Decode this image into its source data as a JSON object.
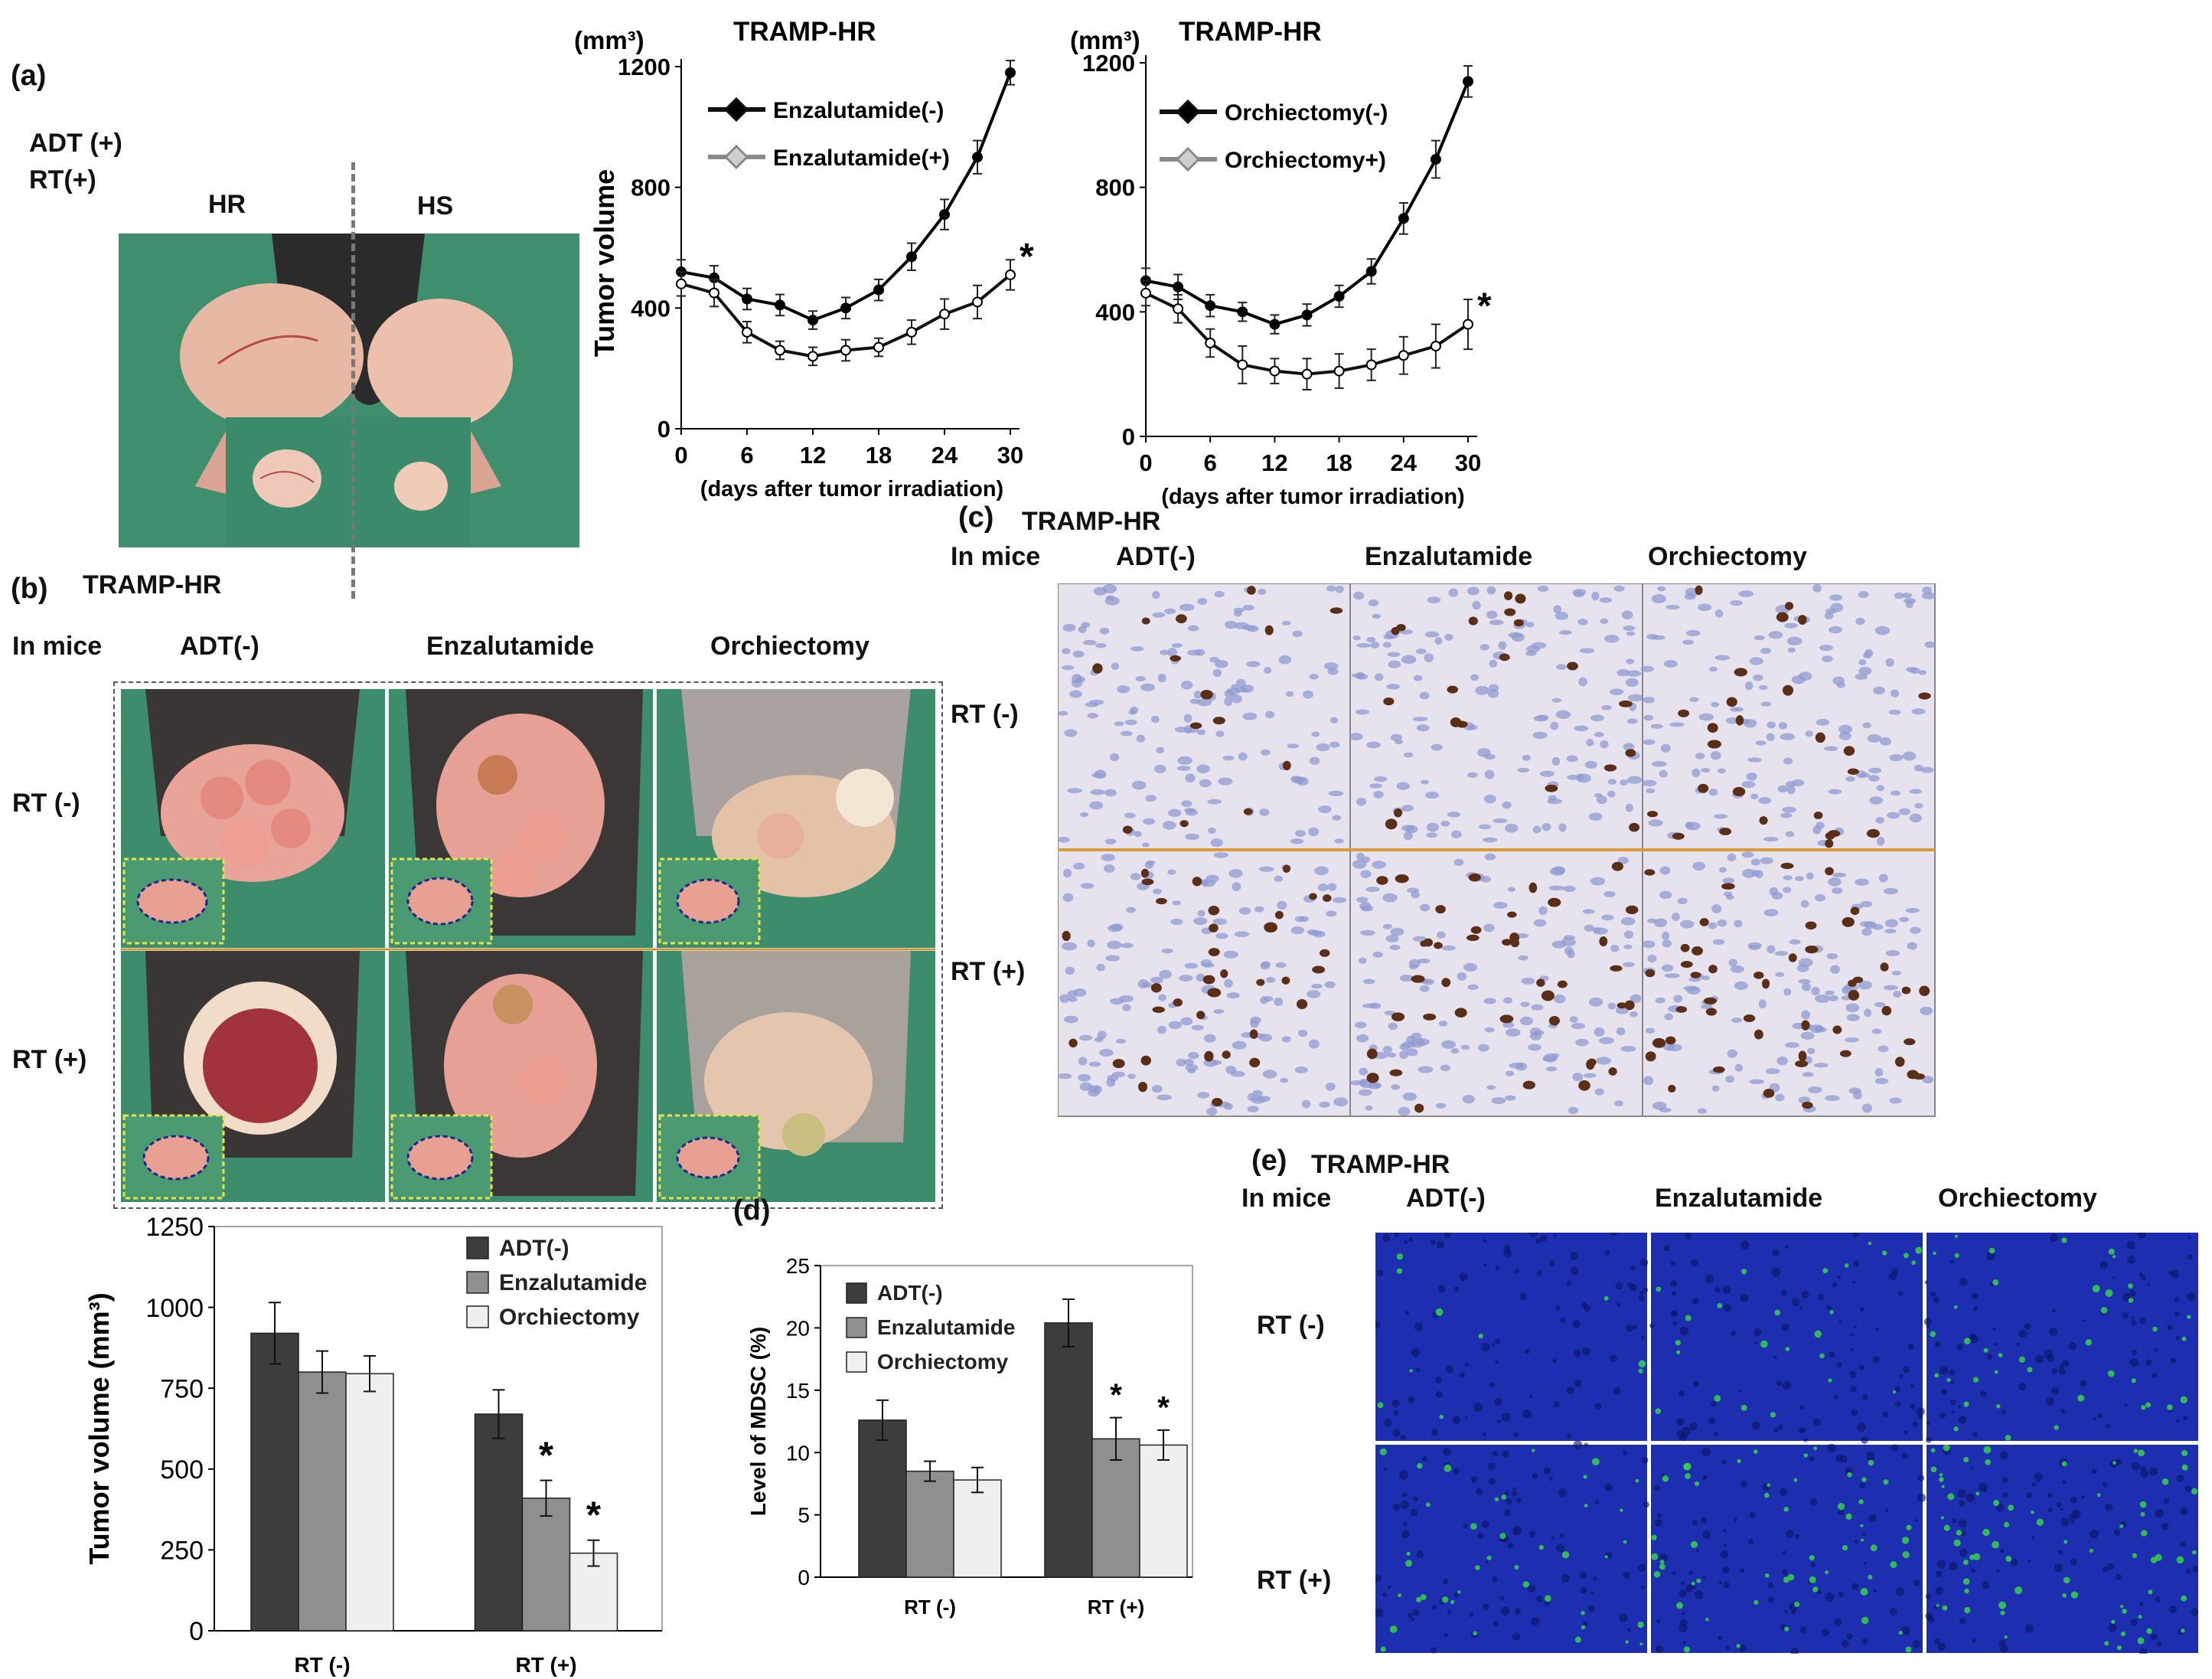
{
  "panel_a": {
    "letter": "(a)",
    "condition_line1": "ADT (+)",
    "condition_line2": "RT(+)",
    "label_hr": "HR",
    "label_hs": "HS"
  },
  "panel_b": {
    "letter": "(b)",
    "title": "TRAMP-HR",
    "in_mice": "In mice",
    "col_labels": [
      "ADT(-)",
      "Enzalutamide",
      "Orchiectomy"
    ],
    "row_labels": [
      "RT (-)",
      "RT (+)"
    ]
  },
  "panel_c": {
    "letter": "(c)",
    "title": "TRAMP-HR",
    "in_mice": "In mice",
    "col_labels": [
      "ADT(-)",
      "Enzalutamide",
      "Orchiectomy"
    ],
    "row_labels": [
      "RT (-)",
      "RT (+)"
    ]
  },
  "panel_d_letter": "(d)",
  "panel_e": {
    "letter": "(e)",
    "title": "TRAMP-HR",
    "in_mice": "In mice",
    "col_labels": [
      "ADT(-)",
      "Enzalutamide",
      "Orchiectomy"
    ],
    "row_labels": [
      "RT (-)",
      "RT (+)"
    ]
  },
  "colors": {
    "black_series": "#111111",
    "grey_series": "#8a8a8a",
    "bar_adt": "#3d3d3d",
    "bar_enz": "#8f8f8f",
    "bar_orch": "#efefef",
    "drape_green": "#3f8f6f",
    "if_blue": "#1d2fb0"
  },
  "chart_data": [
    {
      "id": "line1",
      "type": "line",
      "title": "TRAMP-HR",
      "unit": "(mm³)",
      "ylabel": "Tumor volume",
      "xlabel": "(days after tumor irradiation)",
      "xlim": [
        0,
        30
      ],
      "ylim": [
        0,
        1200
      ],
      "xticks": [
        "0",
        "6",
        "12",
        "18",
        "24",
        "30"
      ],
      "yticks": [
        "0",
        "400",
        "800",
        "1200"
      ],
      "legend_position": "top-left",
      "annotation": "*",
      "x": [
        0,
        3,
        6,
        9,
        12,
        15,
        18,
        21,
        24,
        27,
        30
      ],
      "series": [
        {
          "name": "Enzalutamide(-)",
          "values": [
            520,
            500,
            430,
            410,
            360,
            400,
            460,
            570,
            710,
            900,
            1180
          ],
          "err": [
            40,
            40,
            35,
            35,
            30,
            35,
            35,
            45,
            50,
            55,
            40
          ]
        },
        {
          "name": "Enzalutamide(+)",
          "values": [
            480,
            450,
            320,
            260,
            240,
            260,
            270,
            320,
            380,
            420,
            510
          ],
          "err": [
            40,
            45,
            35,
            30,
            30,
            35,
            30,
            40,
            50,
            55,
            50
          ]
        }
      ]
    },
    {
      "id": "line2",
      "type": "line",
      "title": "TRAMP-HR",
      "unit": "(mm³)",
      "ylabel": "",
      "xlabel": "(days after tumor irradiation)",
      "xlim": [
        0,
        30
      ],
      "ylim": [
        0,
        1200
      ],
      "xticks": [
        "0",
        "6",
        "12",
        "18",
        "24",
        "30"
      ],
      "yticks": [
        "0",
        "400",
        "800",
        "1200"
      ],
      "legend_position": "top-left",
      "annotation": "*",
      "x": [
        0,
        3,
        6,
        9,
        12,
        15,
        18,
        21,
        24,
        27,
        30
      ],
      "series": [
        {
          "name": "Orchiectomy(-)",
          "values": [
            500,
            480,
            420,
            400,
            360,
            390,
            450,
            530,
            700,
            890,
            1140
          ],
          "err": [
            40,
            40,
            35,
            30,
            30,
            35,
            35,
            40,
            50,
            60,
            50
          ]
        },
        {
          "name": "Orchiectomy+)",
          "values": [
            460,
            410,
            300,
            230,
            210,
            200,
            210,
            230,
            260,
            290,
            360
          ],
          "err": [
            40,
            45,
            45,
            60,
            40,
            50,
            55,
            50,
            60,
            70,
            80
          ]
        }
      ]
    },
    {
      "id": "bar1",
      "type": "bar",
      "ylabel": "Tumor volume",
      "unit": "(mm³)",
      "ylim": [
        0,
        1250
      ],
      "yticks": [
        "0",
        "250",
        "500",
        "750",
        "1000",
        "1250"
      ],
      "categories": [
        "RT (-)",
        "RT (+)"
      ],
      "legend_position": "top-right",
      "series": [
        {
          "name": "ADT(-)",
          "values": [
            920,
            670
          ],
          "err": [
            95,
            75
          ],
          "sig": [
            "",
            ""
          ]
        },
        {
          "name": "Enzalutamide",
          "values": [
            800,
            410
          ],
          "err": [
            65,
            55
          ],
          "sig": [
            "",
            "*"
          ]
        },
        {
          "name": "Orchiectomy",
          "values": [
            795,
            240
          ],
          "err": [
            55,
            40
          ],
          "sig": [
            "",
            "*"
          ]
        }
      ]
    },
    {
      "id": "bar2",
      "type": "bar",
      "ylabel": "Level of MDSC (%)",
      "ylim": [
        0,
        25
      ],
      "yticks": [
        "0",
        "5",
        "10",
        "15",
        "20",
        "25"
      ],
      "categories": [
        "RT (-)",
        "RT (+)"
      ],
      "legend_position": "top-left",
      "series": [
        {
          "name": "ADT(-)",
          "values": [
            12.6,
            20.4
          ],
          "err": [
            1.6,
            1.9
          ],
          "sig": [
            "",
            ""
          ]
        },
        {
          "name": "Enzalutamide",
          "values": [
            8.5,
            11.1
          ],
          "err": [
            0.8,
            1.7
          ],
          "sig": [
            "",
            "*"
          ]
        },
        {
          "name": "Orchiectomy",
          "values": [
            7.8,
            10.6
          ],
          "err": [
            1.0,
            1.2
          ],
          "sig": [
            "",
            "*"
          ]
        }
      ]
    }
  ]
}
